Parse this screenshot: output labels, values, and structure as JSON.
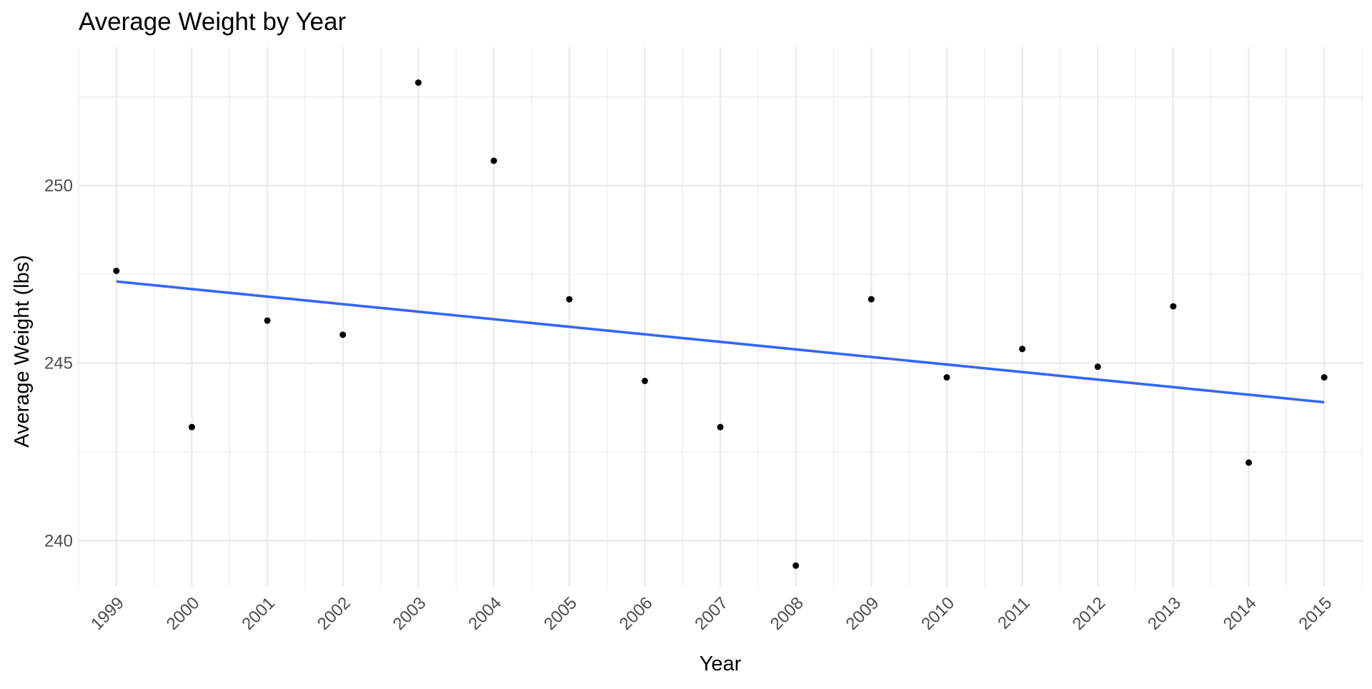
{
  "chart_data": {
    "type": "scatter",
    "title": "Average Weight by Year",
    "xlabel": "Year",
    "ylabel": "Average Weight (lbs)",
    "x": [
      1999,
      2000,
      2001,
      2002,
      2003,
      2004,
      2005,
      2006,
      2007,
      2008,
      2009,
      2010,
      2011,
      2012,
      2013,
      2014,
      2015
    ],
    "y": [
      247.6,
      243.2,
      246.2,
      245.8,
      252.9,
      250.7,
      246.8,
      244.5,
      243.2,
      239.3,
      246.8,
      244.6,
      245.4,
      244.9,
      246.6,
      242.2,
      244.6
    ],
    "x_tick_labels": [
      "1999",
      "2000",
      "2001",
      "2002",
      "2003",
      "2004",
      "2005",
      "2006",
      "2007",
      "2008",
      "2009",
      "2010",
      "2011",
      "2012",
      "2013",
      "2014",
      "2015"
    ],
    "y_ticks": [
      240,
      245,
      250
    ],
    "xlim": [
      1998.5,
      2015.5
    ],
    "ylim": [
      238.7,
      253.9
    ],
    "point_color": "#000000",
    "trend_line": {
      "method": "linear",
      "color": "#3366ff",
      "x": [
        1999,
        2015
      ],
      "y": [
        247.3,
        243.9
      ]
    },
    "grid": true,
    "grid_color": "#ebebeb",
    "legend": "none"
  }
}
